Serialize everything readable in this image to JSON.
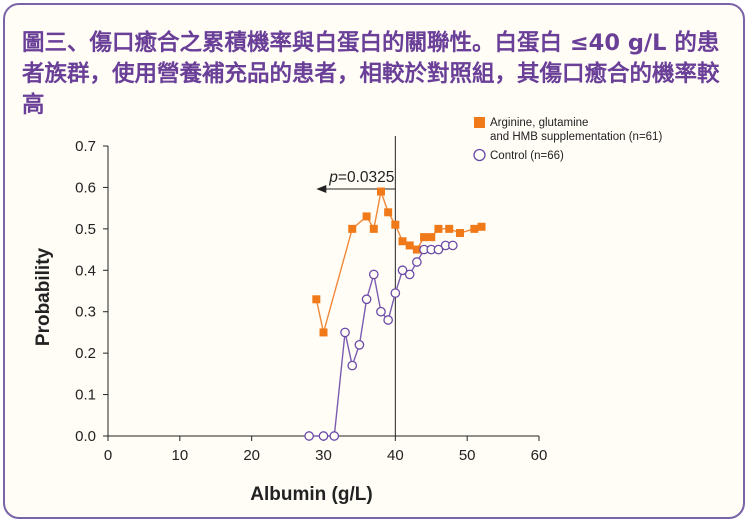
{
  "title": "圖三、傷口癒合之累積機率與白蛋白的關聯性。白蛋白 ≤40 g/L 的患者族群，使用營養補充品的患者，相較於對照組，其傷口癒合的機率較高",
  "chart_data": {
    "type": "scatter",
    "title": "",
    "xlabel": "Albumin (g/L)",
    "ylabel": "Probability",
    "xlim": [
      0,
      60
    ],
    "ylim": [
      0,
      0.7
    ],
    "x_ticks": [
      0,
      10,
      20,
      30,
      40,
      50,
      60
    ],
    "y_ticks": [
      "0.0",
      "0.1",
      "0.2",
      "0.3",
      "0.4",
      "0.5",
      "0.6",
      "0.7"
    ],
    "grid": false,
    "legend_position": "top-right",
    "annotation": {
      "text": "p=0.0325",
      "italic_part": "p",
      "rest": "=0.0325",
      "threshold_x": 40,
      "arrow_y": 0.63,
      "arrow_from_x": 40,
      "arrow_to_x": 29
    },
    "series": [
      {
        "name": "Arginine, glutamine and HMB supplementation (n=61)",
        "legend_lines": [
          "Arginine, glutamine",
          "and HMB supplementation (n=61)"
        ],
        "marker": "filled-square",
        "line_color": "#f0883a",
        "marker_color": "#f07a1a",
        "points": [
          [
            29,
            0.33
          ],
          [
            30,
            0.25
          ],
          [
            34,
            0.5
          ],
          [
            36,
            0.53
          ],
          [
            37,
            0.5
          ],
          [
            38,
            0.59
          ],
          [
            39,
            0.54
          ],
          [
            40,
            0.51
          ],
          [
            41,
            0.47
          ],
          [
            42,
            0.46
          ],
          [
            43,
            0.45
          ],
          [
            44,
            0.48
          ],
          [
            45,
            0.48
          ],
          [
            46,
            0.5
          ],
          [
            47.5,
            0.5
          ],
          [
            49,
            0.49
          ],
          [
            51,
            0.5
          ],
          [
            52,
            0.505
          ]
        ]
      },
      {
        "name": "Control (n=66)",
        "legend_lines": [
          "Control (n=66)"
        ],
        "marker": "open-circle",
        "line_color": "#7a5cb0",
        "marker_color": "#6a4aa8",
        "points": [
          [
            28,
            0.0
          ],
          [
            30,
            0.0
          ],
          [
            31.5,
            0.0
          ],
          [
            33,
            0.25
          ],
          [
            34,
            0.17
          ],
          [
            35,
            0.22
          ],
          [
            36,
            0.33
          ],
          [
            37,
            0.39
          ],
          [
            38,
            0.3
          ],
          [
            39,
            0.28
          ],
          [
            40,
            0.345
          ],
          [
            41,
            0.4
          ],
          [
            42,
            0.39
          ],
          [
            43,
            0.42
          ],
          [
            44,
            0.45
          ],
          [
            45,
            0.45
          ],
          [
            46,
            0.45
          ],
          [
            47,
            0.46
          ],
          [
            48,
            0.46
          ]
        ]
      }
    ]
  }
}
